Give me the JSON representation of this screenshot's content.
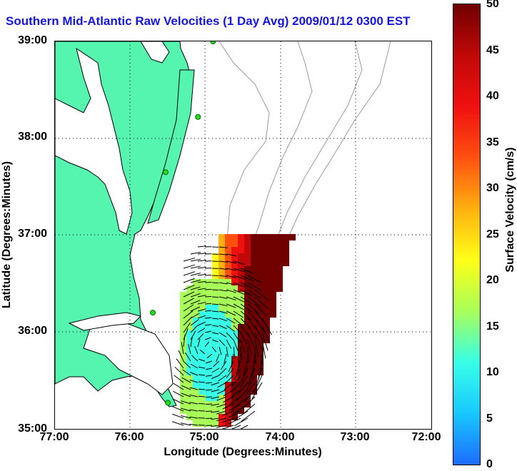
{
  "title": "Southern Mid-Atlantic Raw Velocities (1 Day Avg) 2009/01/12 0300 EST",
  "axes": {
    "xlabel": "Longitude (Degrees:Minutes)",
    "ylabel": "Latitude (Degrees:Minutes)",
    "x_ticks": [
      "77:00",
      "76:00",
      "75:00",
      "74:00",
      "73:00",
      "72:00"
    ],
    "y_ticks": [
      "39:00",
      "38:00",
      "37:00",
      "36:00",
      "35:00"
    ]
  },
  "colorbar": {
    "label": "Surface Velocity (cm/s)",
    "ticks": [
      "50",
      "45",
      "40",
      "35",
      "30",
      "25",
      "20",
      "15",
      "10",
      "5",
      "0"
    ],
    "min": 0,
    "max": 50,
    "colors": [
      "#1e6cff",
      "#18c8ff",
      "#38ffe8",
      "#a8ff5a",
      "#ffff18",
      "#ffb010",
      "#ff5010",
      "#f01010",
      "#c00808",
      "#700000"
    ]
  },
  "colors": {
    "land": "#55f5b0",
    "contour": "#9a9a9a",
    "stations": "#22dd22",
    "title": "#1515e0"
  },
  "map": {
    "lon_range": [
      -77,
      -72
    ],
    "lat_range": [
      35,
      39
    ],
    "stations": [
      {
        "lon": -74.9,
        "lat": 39.0
      },
      {
        "lon": -75.1,
        "lat": 38.22
      },
      {
        "lon": -75.53,
        "lat": 37.65
      },
      {
        "lon": -75.7,
        "lat": 36.2
      },
      {
        "lon": -75.5,
        "lat": 35.27
      }
    ]
  }
}
